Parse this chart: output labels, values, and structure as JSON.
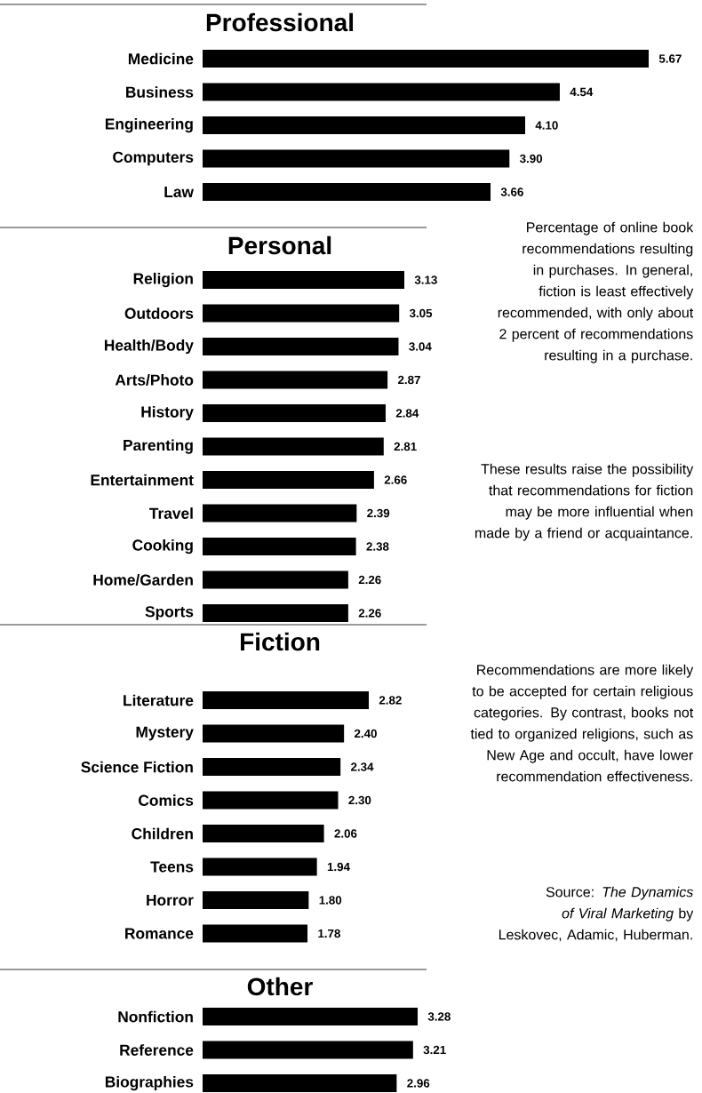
{
  "chart_data": [
    {
      "type": "bar",
      "orientation": "horizontal",
      "title": "Professional",
      "color": "#000000",
      "categories": [
        "Medicine",
        "Business",
        "Engineering",
        "Computers",
        "Law"
      ],
      "values": [
        5.67,
        4.54,
        4.1,
        3.9,
        3.66
      ],
      "value_labels": [
        "5.67",
        "4.54",
        "4.10",
        "3.90",
        "3.66"
      ]
    },
    {
      "type": "bar",
      "orientation": "horizontal",
      "title": "Personal",
      "color": "#000000",
      "categories": [
        "Religion",
        "Outdoors",
        "Health/Body",
        "Arts/Photo",
        "History",
        "Parenting",
        "Entertainment",
        "Travel",
        "Cooking",
        "Home/Garden",
        "Sports"
      ],
      "values": [
        3.13,
        3.05,
        3.04,
        2.87,
        2.84,
        2.81,
        2.66,
        2.39,
        2.38,
        2.26,
        2.26
      ],
      "value_labels": [
        "3.13",
        "3.05",
        "3.04",
        "2.87",
        "2.84",
        "2.81",
        "2.66",
        "2.39",
        "2.38",
        "2.26",
        "2.26"
      ],
      "annotations": [
        "Percentage of online book recommendations resulting in purchases. In general, fiction is least effectively recommended, with only about 2 percent of recommendations resulting in a purchase.",
        "These results raise the possibility that recommendations for fiction may be more influential when made by a friend or acquaintance.",
        "Recommendations are more likely to be accepted for certain religious categories. By contrast, books not tied to organized religions, such as New Age and occult, have lower recommendation effectiveness.",
        "Source: *The Dynamics of Viral Marketing* by Leskovec, Adamic, Huberman."
      ]
    },
    {
      "type": "bar",
      "orientation": "horizontal",
      "title": "Fiction",
      "color": "#000000",
      "categories": [
        "Literature",
        "Mystery",
        "Science Fiction",
        "Comics",
        "Children",
        "Teens",
        "Horror",
        "Romance"
      ],
      "values": [
        2.82,
        2.4,
        2.34,
        2.3,
        2.06,
        1.94,
        1.8,
        1.78
      ],
      "value_labels": [
        "2.82",
        "2.40",
        "2.34",
        "2.30",
        "2.06",
        "1.94",
        "1.80",
        "1.78"
      ]
    },
    {
      "type": "bar",
      "orientation": "horizontal",
      "title": "Other",
      "color": "#000000",
      "categories": [
        "Nonfiction",
        "Reference",
        "Biographies"
      ],
      "values": [
        3.28,
        3.21,
        2.96
      ],
      "value_labels": [
        "3.28",
        "3.21",
        "2.96"
      ]
    }
  ]
}
